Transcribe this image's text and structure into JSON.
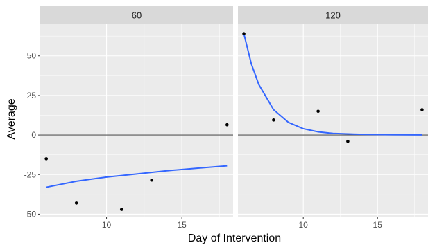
{
  "chart_data": {
    "type": "scatter",
    "facet_variable_labels": [
      "60",
      "120"
    ],
    "xlabel": "Day of Intervention",
    "ylabel": "Average",
    "xlim": [
      5.6,
      18.4
    ],
    "ylim": [
      -52,
      70
    ],
    "x_ticks": [
      10,
      15
    ],
    "x_tick_labels": [
      "10",
      "15"
    ],
    "y_ticks": [
      -50,
      -25,
      0,
      25,
      50
    ],
    "y_tick_labels": [
      "-50",
      "-25",
      "0",
      "25",
      "50"
    ],
    "reference_line_y": 0,
    "grid": true,
    "panels": [
      {
        "strip_label": "60",
        "points": [
          {
            "x": 6,
            "y": -15
          },
          {
            "x": 8,
            "y": -43
          },
          {
            "x": 11,
            "y": -47
          },
          {
            "x": 13,
            "y": -28.5
          },
          {
            "x": 18,
            "y": 6.5
          }
        ],
        "fit_curve": [
          {
            "x": 6,
            "y": -33
          },
          {
            "x": 8,
            "y": -29.2
          },
          {
            "x": 10,
            "y": -26.6
          },
          {
            "x": 12,
            "y": -24.6
          },
          {
            "x": 14,
            "y": -22.6
          },
          {
            "x": 16,
            "y": -21
          },
          {
            "x": 18,
            "y": -19.5
          }
        ]
      },
      {
        "strip_label": "120",
        "points": [
          {
            "x": 6,
            "y": 64
          },
          {
            "x": 8,
            "y": 9.5
          },
          {
            "x": 11,
            "y": 15
          },
          {
            "x": 13,
            "y": -4
          },
          {
            "x": 18,
            "y": 16
          }
        ],
        "fit_curve": [
          {
            "x": 6,
            "y": 64
          },
          {
            "x": 6.5,
            "y": 45
          },
          {
            "x": 7,
            "y": 32
          },
          {
            "x": 8,
            "y": 16
          },
          {
            "x": 9,
            "y": 8
          },
          {
            "x": 10,
            "y": 4
          },
          {
            "x": 11,
            "y": 2
          },
          {
            "x": 12,
            "y": 1
          },
          {
            "x": 14,
            "y": 0.4
          },
          {
            "x": 16,
            "y": 0.2
          },
          {
            "x": 18,
            "y": 0.1
          }
        ]
      }
    ],
    "colors": {
      "panel_background": "#ebebeb",
      "strip_background": "#d9d9d9",
      "grid": "#ffffff",
      "points": "#000000",
      "fit_line": "#3366ff",
      "reference_line": "#555555"
    }
  }
}
